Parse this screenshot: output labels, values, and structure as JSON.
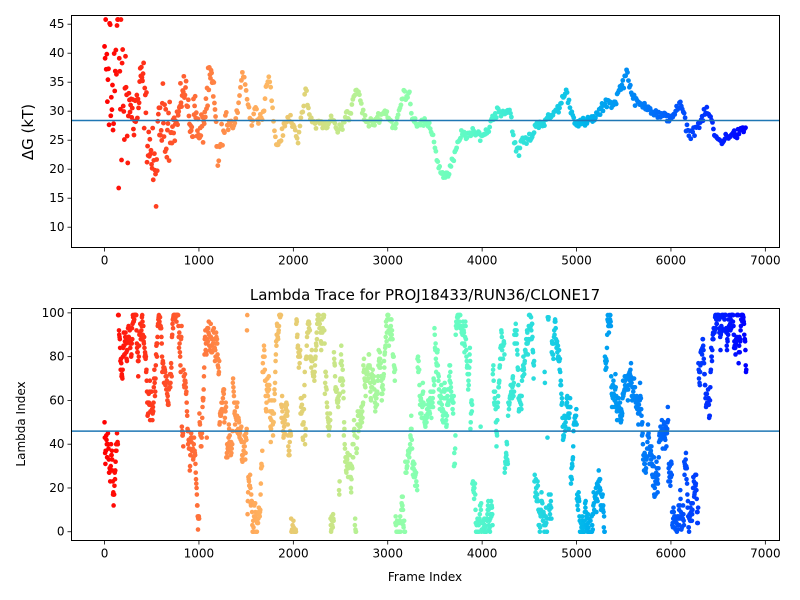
{
  "chart_data": [
    {
      "type": "scatter",
      "title": "",
      "xlabel": "",
      "ylabel": "ΔG (kT)",
      "xlim": [
        -350,
        7150
      ],
      "ylim": [
        6.5,
        46.5
      ],
      "xticks": [
        0,
        1000,
        2000,
        3000,
        4000,
        5000,
        6000,
        7000
      ],
      "yticks": [
        10,
        15,
        20,
        25,
        30,
        35,
        40,
        45
      ],
      "hline": 28.4,
      "colormap": "rainbow (red at frame 0 → violet at last frame)",
      "trace": [
        [
          0,
          40
        ],
        [
          30,
          34
        ],
        [
          60,
          37
        ],
        [
          100,
          35
        ],
        [
          130,
          40
        ],
        [
          160,
          38
        ],
        [
          190,
          31
        ],
        [
          230,
          33
        ],
        [
          270,
          31
        ],
        [
          310,
          29
        ],
        [
          360,
          31
        ],
        [
          400,
          36
        ],
        [
          450,
          27
        ],
        [
          500,
          22
        ],
        [
          540,
          18
        ],
        [
          580,
          27
        ],
        [
          620,
          29
        ],
        [
          680,
          28
        ],
        [
          740,
          27
        ],
        [
          800,
          30
        ],
        [
          830,
          35
        ],
        [
          870,
          32
        ],
        [
          920,
          27
        ],
        [
          960,
          31
        ],
        [
          1000,
          25
        ],
        [
          1050,
          28
        ],
        [
          1100,
          34
        ],
        [
          1130,
          36
        ],
        [
          1170,
          30
        ],
        [
          1200,
          22
        ],
        [
          1230,
          24
        ],
        [
          1270,
          27
        ],
        [
          1320,
          28
        ],
        [
          1380,
          27
        ],
        [
          1430,
          33
        ],
        [
          1460,
          37
        ],
        [
          1490,
          35
        ],
        [
          1520,
          31
        ],
        [
          1560,
          28
        ],
        [
          1600,
          31
        ],
        [
          1630,
          28
        ],
        [
          1680,
          30
        ],
        [
          1720,
          35
        ],
        [
          1750,
          36
        ],
        [
          1780,
          30
        ],
        [
          1820,
          24
        ],
        [
          1860,
          25
        ],
        [
          1900,
          27
        ],
        [
          1950,
          29
        ],
        [
          2000,
          28
        ],
        [
          2050,
          25
        ],
        [
          2100,
          30
        ],
        [
          2130,
          34
        ],
        [
          2160,
          30
        ],
        [
          2200,
          28
        ],
        [
          2300,
          28
        ],
        [
          2360,
          27
        ],
        [
          2400,
          29
        ],
        [
          2460,
          27
        ],
        [
          2520,
          27
        ],
        [
          2560,
          30
        ],
        [
          2600,
          29
        ],
        [
          2640,
          33
        ],
        [
          2700,
          33
        ],
        [
          2730,
          30
        ],
        [
          2780,
          28
        ],
        [
          2850,
          28
        ],
        [
          2900,
          29
        ],
        [
          2980,
          30
        ],
        [
          3040,
          28
        ],
        [
          3080,
          27
        ],
        [
          3120,
          30
        ],
        [
          3170,
          33
        ],
        [
          3230,
          33
        ],
        [
          3260,
          29
        ],
        [
          3300,
          28
        ],
        [
          3400,
          28
        ],
        [
          3480,
          26
        ],
        [
          3530,
          21
        ],
        [
          3580,
          19
        ],
        [
          3640,
          19
        ],
        [
          3680,
          21
        ],
        [
          3740,
          24
        ],
        [
          3780,
          26
        ],
        [
          3850,
          26
        ],
        [
          3950,
          26
        ],
        [
          4030,
          26
        ],
        [
          4070,
          27
        ],
        [
          4110,
          29
        ],
        [
          4160,
          30
        ],
        [
          4250,
          30
        ],
        [
          4300,
          30
        ],
        [
          4330,
          26
        ],
        [
          4360,
          23
        ],
        [
          4390,
          23
        ],
        [
          4420,
          25
        ],
        [
          4480,
          25
        ],
        [
          4540,
          26
        ],
        [
          4580,
          28
        ],
        [
          4660,
          28
        ],
        [
          4720,
          29
        ],
        [
          4780,
          30
        ],
        [
          4830,
          31
        ],
        [
          4870,
          33
        ],
        [
          4900,
          33
        ],
        [
          4930,
          31
        ],
        [
          4960,
          29
        ],
        [
          5020,
          28
        ],
        [
          5100,
          28
        ],
        [
          5200,
          29
        ],
        [
          5250,
          30
        ],
        [
          5300,
          31
        ],
        [
          5340,
          32
        ],
        [
          5380,
          31
        ],
        [
          5420,
          32
        ],
        [
          5460,
          34
        ],
        [
          5500,
          35
        ],
        [
          5530,
          37
        ],
        [
          5560,
          35
        ],
        [
          5600,
          32
        ],
        [
          5680,
          31
        ],
        [
          5760,
          31
        ],
        [
          5800,
          30
        ],
        [
          5900,
          29
        ],
        [
          5960,
          29
        ],
        [
          6000,
          29
        ],
        [
          6050,
          30
        ],
        [
          6100,
          31
        ],
        [
          6130,
          30
        ],
        [
          6150,
          28
        ],
        [
          6200,
          26
        ],
        [
          6260,
          27
        ],
        [
          6310,
          28
        ],
        [
          6340,
          29
        ],
        [
          6380,
          30
        ],
        [
          6420,
          29
        ],
        [
          6460,
          26
        ],
        [
          6500,
          25
        ],
        [
          6560,
          25
        ],
        [
          6620,
          26
        ],
        [
          6700,
          26
        ],
        [
          6790,
          27
        ]
      ]
    },
    {
      "type": "scatter",
      "title": "Lambda Trace for PROJ18433/RUN36/CLONE17",
      "xlabel": "Frame Index",
      "ylabel": "Lambda Index",
      "xlim": [
        -350,
        7150
      ],
      "ylim": [
        -4,
        102
      ],
      "xticks": [
        0,
        1000,
        2000,
        3000,
        4000,
        5000,
        6000,
        7000
      ],
      "yticks": [
        0,
        20,
        40,
        60,
        80,
        100
      ],
      "hline": 46,
      "colormap": "rainbow (red at frame 0 → violet at last frame)",
      "x_range_of_points": [
        0,
        6800
      ],
      "y_range_of_points": [
        0,
        99
      ]
    }
  ]
}
